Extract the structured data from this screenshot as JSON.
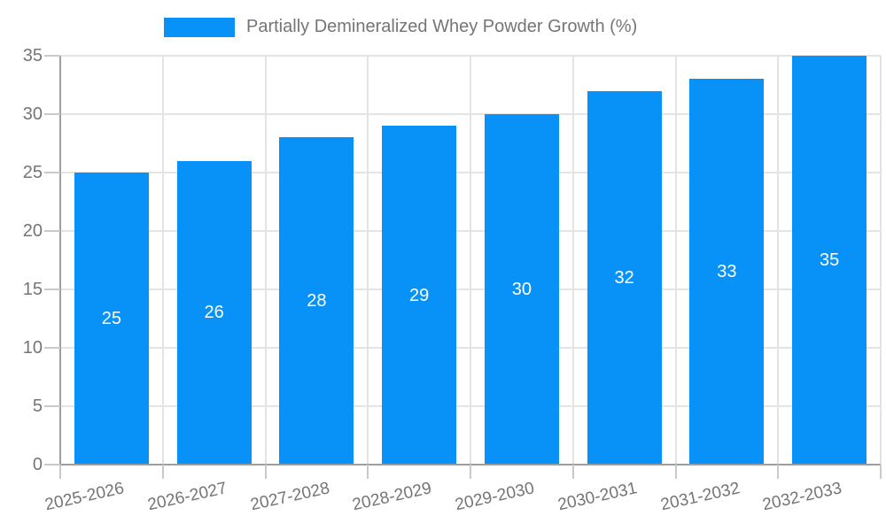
{
  "legend": {
    "label": "Partially Demineralized Whey Powder Growth (%)"
  },
  "colors": {
    "bar": "#0892f8",
    "axis": "#9e9e9e",
    "grid": "#e4e4e4",
    "tick": "#c9c9c9",
    "axis_label": "#757575",
    "value_label": "#ffffff",
    "background": "#ffffff"
  },
  "chart_data": {
    "type": "bar",
    "title": "",
    "xlabel": "",
    "ylabel": "",
    "categories": [
      "2025-2026",
      "2026-2027",
      "2027-2028",
      "2028-2029",
      "2029-2030",
      "2030-2031",
      "2031-2032",
      "2032-2033"
    ],
    "series": [
      {
        "name": "Partially Demineralized Whey Powder Growth (%)",
        "values": [
          25,
          26,
          28,
          29,
          30,
          32,
          33,
          35
        ]
      }
    ],
    "value_labels": [
      25,
      26,
      28,
      29,
      30,
      32,
      33,
      35
    ],
    "value_label_position": "inside-center",
    "ylim": [
      0,
      35
    ],
    "yticks": [
      0,
      5,
      10,
      15,
      20,
      25,
      30,
      35
    ],
    "grid": true,
    "legend_position": "top"
  }
}
